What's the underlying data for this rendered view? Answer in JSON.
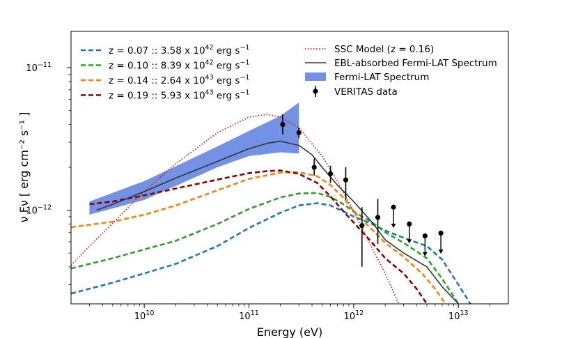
{
  "chart_data": {
    "type": "line",
    "xlabel": "Energy (eV)",
    "ylabel": "ν Fν [ erg cm⁻² s⁻¹ ]",
    "xscale": "log",
    "yscale": "log",
    "xlim": [
      2000000000.0,
      30000000000000.0
    ],
    "ylim": [
      2.2e-13,
      1.8e-11
    ],
    "x_ticks": [
      {
        "value": 10000000000.0,
        "base": "10",
        "exp": "10"
      },
      {
        "value": 100000000000.0,
        "base": "10",
        "exp": "11"
      },
      {
        "value": 1000000000000.0,
        "base": "10",
        "exp": "12"
      },
      {
        "value": 10000000000000.0,
        "base": "10",
        "exp": "13"
      }
    ],
    "y_ticks": [
      {
        "value": 1e-12,
        "base": "10",
        "exp": "−12"
      },
      {
        "value": 1e-11,
        "base": "10",
        "exp": "−11"
      }
    ],
    "series": [
      {
        "name": "z = 0.07 :: 3.58 x 10^42 erg s^-1",
        "label_main": "z = 0.07 :: 3.58 x 10",
        "label_exp": "42",
        "label_unit": " erg s",
        "label_unit_exp": "−1",
        "color": "#1f77b4",
        "style": "dashed",
        "x": [
          2000000000.0,
          5000000000.0,
          10000000000.0,
          20000000000.0,
          50000000000.0,
          100000000000.0,
          200000000000.0,
          300000000000.0,
          450000000000.0,
          600000000000.0,
          800000000000.0,
          1000000000000.0,
          1500000000000.0,
          2000000000000.0,
          3000000000000.0,
          5000000000000.0,
          7000000000000.0,
          10000000000000.0,
          13000000000000.0
        ],
        "y": [
          2.6e-13,
          3.1e-13,
          3.6e-13,
          4.2e-13,
          5.6e-13,
          7.5e-13,
          9.6e-13,
          1.08e-12,
          1.12e-12,
          1.08e-12,
          9.8e-13,
          9e-13,
          8e-13,
          7.2e-13,
          6.4e-13,
          5.6e-13,
          4.5e-13,
          3e-13,
          2.2e-13
        ]
      },
      {
        "name": "z = 0.10 :: 8.39 x 10^42 erg s^-1",
        "label_main": "z = 0.10 :: 8.39 x 10",
        "label_exp": "42",
        "label_unit": " erg s",
        "label_unit_exp": "−1",
        "color": "#2ca02c",
        "style": "dashed",
        "x": [
          2000000000.0,
          5000000000.0,
          10000000000.0,
          20000000000.0,
          50000000000.0,
          100000000000.0,
          200000000000.0,
          300000000000.0,
          450000000000.0,
          600000000000.0,
          800000000000.0,
          1000000000000.0,
          1500000000000.0,
          2000000000000.0,
          3000000000000.0,
          5000000000000.0,
          7000000000000.0,
          10000000000000.0
        ],
        "y": [
          3.9e-13,
          4.6e-13,
          5.3e-13,
          6.1e-13,
          8e-13,
          1.02e-12,
          1.23e-12,
          1.31e-12,
          1.32e-12,
          1.24e-12,
          1.1e-12,
          9.8e-13,
          8.2e-13,
          7e-13,
          5.9e-13,
          4.6e-13,
          3.3e-13,
          2.2e-13
        ]
      },
      {
        "name": "z = 0.14 :: 2.64 x 10^43 erg s^-1",
        "label_main": "z = 0.14 :: 2.64 x 10",
        "label_exp": "43",
        "label_unit": " erg s",
        "label_unit_exp": "−1",
        "color": "#ff7f0e",
        "style": "dashed",
        "x": [
          2000000000.0,
          5000000000.0,
          10000000000.0,
          20000000000.0,
          50000000000.0,
          100000000000.0,
          200000000000.0,
          300000000000.0,
          450000000000.0,
          600000000000.0,
          800000000000.0,
          1000000000000.0,
          1500000000000.0,
          2000000000000.0,
          3000000000000.0,
          4500000000000.0,
          6000000000000.0,
          7500000000000.0
        ],
        "y": [
          7.6e-13,
          8.3e-13,
          9.3e-13,
          1.08e-12,
          1.38e-12,
          1.66e-12,
          1.84e-12,
          1.85e-12,
          1.73e-12,
          1.5e-12,
          1.22e-12,
          9.8e-13,
          7.3e-13,
          5.9e-13,
          4.7e-13,
          3.6e-13,
          2.8e-13,
          2.2e-13
        ]
      },
      {
        "name": "z = 0.19 :: 5.93 x 10^43 erg s^-1",
        "label_main": "z = 0.19 :: 5.93 x 10",
        "label_exp": "43",
        "label_unit": " erg s",
        "label_unit_exp": "−1",
        "color": "#8b0000",
        "style": "dashed",
        "x": [
          3000000000.0,
          5000000000.0,
          10000000000.0,
          20000000000.0,
          50000000000.0,
          100000000000.0,
          150000000000.0,
          200000000000.0,
          300000000000.0,
          450000000000.0,
          600000000000.0,
          800000000000.0,
          1000000000000.0,
          1500000000000.0,
          2000000000000.0,
          3000000000000.0,
          4000000000000.0,
          5000000000000.0
        ],
        "y": [
          1.1e-12,
          1.15e-12,
          1.27e-12,
          1.42e-12,
          1.64e-12,
          1.82e-12,
          1.88e-12,
          1.9e-12,
          1.8e-12,
          1.55e-12,
          1.25e-12,
          9.8e-13,
          8.2e-13,
          5.9e-13,
          4.6e-13,
          3.6e-13,
          2.8e-13,
          2.2e-13
        ]
      },
      {
        "name": "SSC Model (z = 0.16)",
        "label_main": "SSC Model (z = 0.16)",
        "color": "#e31a1c",
        "style": "dotted",
        "x": [
          2000000000.0,
          3000000000.0,
          5000000000.0,
          10000000000.0,
          20000000000.0,
          50000000000.0,
          100000000000.0,
          150000000000.0,
          200000000000.0,
          300000000000.0,
          500000000000.0,
          700000000000.0,
          1000000000000.0,
          1500000000000.0,
          2000000000000.0,
          2700000000000.0
        ],
        "y": [
          4.1e-13,
          5.6e-13,
          8.1e-13,
          1.36e-12,
          2.12e-12,
          3.5e-12,
          4.5e-12,
          4.7e-12,
          4.5e-12,
          3.8e-12,
          2.4e-12,
          1.6e-12,
          9.8e-13,
          5.4e-13,
          3.6e-13,
          2.2e-13
        ]
      },
      {
        "name": "EBL-absorbed Fermi-LAT Spectrum",
        "label_main": "EBL-absorbed Fermi-LAT Spectrum",
        "color": "#333333",
        "style": "solid",
        "x": [
          3500000000.0,
          5000000000.0,
          10000000000.0,
          20000000000.0,
          50000000000.0,
          100000000000.0,
          150000000000.0,
          200000000000.0,
          300000000000.0,
          400000000000.0,
          500000000000.0,
          700000000000.0,
          1000000000000.0,
          1500000000000.0,
          2000000000000.0,
          3000000000000.0,
          5000000000000.0,
          7000000000000.0,
          10000000000000.0
        ],
        "y": [
          1e-12,
          1.1e-12,
          1.35e-12,
          1.68e-12,
          2.2e-12,
          2.7e-12,
          2.95e-12,
          3.05e-12,
          2.85e-12,
          2.45e-12,
          2e-12,
          1.5e-12,
          1.15e-12,
          8.2e-13,
          6.2e-13,
          5e-13,
          4e-13,
          2.9e-13,
          2.2e-13
        ]
      }
    ],
    "fermi_band": {
      "name": "Fermi-LAT Spectrum",
      "label_main": "Fermi-LAT Spectrum",
      "color": "#5b7fe0",
      "x": [
        3000000000.0,
        10000000000.0,
        50000000000.0,
        100000000000.0,
        200000000000.0,
        300000000000.0
      ],
      "lower": [
        9.3e-13,
        1.18e-12,
        2e-12,
        2.4e-12,
        2.55e-12,
        2.5e-12
      ],
      "upper": [
        1.15e-12,
        1.6e-12,
        2.8e-12,
        3.6e-12,
        4.6e-12,
        5.7e-12
      ]
    },
    "veritas": {
      "name": "VERITAS data",
      "label_main": "VERITAS data",
      "points": [
        {
          "x": 210000000000.0,
          "y": 4e-12,
          "lo": 3.4e-12,
          "hi": 4.7e-12
        },
        {
          "x": 300000000000.0,
          "y": 3.5e-12,
          "lo": 3.2e-12,
          "hi": 3.8e-12
        },
        {
          "x": 420000000000.0,
          "y": 2e-12,
          "lo": 1.75e-12,
          "hi": 2.3e-12
        },
        {
          "x": 600000000000.0,
          "y": 1.8e-12,
          "lo": 1.55e-12,
          "hi": 2.05e-12
        },
        {
          "x": 840000000000.0,
          "y": 1.63e-12,
          "lo": 1.18e-12,
          "hi": 2e-12
        },
        {
          "x": 1200000000000.0,
          "y": 7.8e-13,
          "lo": 4e-13,
          "hi": 1.05e-12
        },
        {
          "x": 1700000000000.0,
          "y": 8.9e-13,
          "lo": 5.8e-13,
          "hi": 1.2e-12
        }
      ],
      "upper_limits": [
        {
          "x": 2400000000000.0,
          "y": 1.05e-12,
          "end": 7.6e-13
        },
        {
          "x": 3400000000000.0,
          "y": 8e-13,
          "end": 5.9e-13
        },
        {
          "x": 4800000000000.0,
          "y": 6.6e-13,
          "end": 4.8e-13
        },
        {
          "x": 6800000000000.0,
          "y": 6.9e-13,
          "end": 5e-13
        }
      ]
    }
  }
}
